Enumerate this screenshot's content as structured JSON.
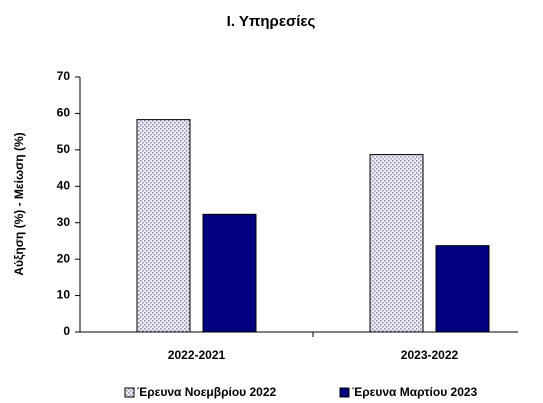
{
  "chart_data": {
    "type": "bar",
    "title": "Ι. Υπηρεσίες",
    "y_label": "Αύξηση (%) - Μείωση (%)",
    "categories": [
      "2022-2021",
      "2023-2022"
    ],
    "series": [
      {
        "name": "Έρευνα Νοεμβρίου 2022",
        "color": "#c8c8e0",
        "pattern": "dots",
        "values": [
          58.3,
          48.7
        ]
      },
      {
        "name": "Έρευνα Μαρτίου 2023",
        "color": "#000080",
        "values": [
          32.3,
          23.7
        ]
      }
    ],
    "ylim": [
      0,
      70
    ],
    "yticks": [
      0,
      10,
      20,
      30,
      40,
      50,
      60,
      70
    ],
    "legend": "bottom"
  }
}
